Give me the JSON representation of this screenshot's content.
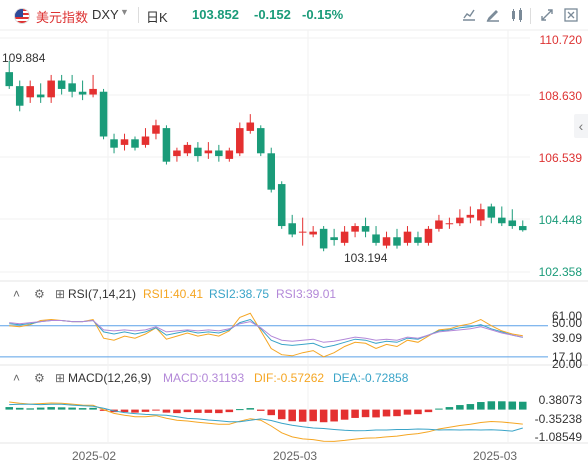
{
  "header": {
    "name": "美元指数",
    "code": "DXY",
    "period": "日K",
    "price": "103.852",
    "change": "-0.152",
    "change_pct": "-0.15%",
    "up_color": "#e43030",
    "down_color": "#1a9b79"
  },
  "toolbar": {
    "icons": [
      "chart-type-icon",
      "draw-icon",
      "indicator-icon",
      "fullscreen-icon",
      "settings-icon"
    ]
  },
  "main": {
    "max_label": "109.884",
    "min_label": "103.194",
    "y_ticks": [
      "110.720",
      "108.630",
      "106.539",
      "104.448",
      "102.358"
    ],
    "y_values": [
      110.72,
      108.63,
      106.539,
      104.448,
      102.358
    ]
  },
  "rsi": {
    "title": "RSI(7,14,21)",
    "rsi1": "RSI1:40.41",
    "rsi2": "RSI2:38.75",
    "rsi3": "RSI3:39.01",
    "y_ticks": [
      "61.00",
      "50.00",
      "39.09",
      "20.00",
      "17.10"
    ]
  },
  "macd": {
    "title": "MACD(12,26,9)",
    "macd": "MACD:0.31193",
    "dif": "DIF:-0.57262",
    "dea": "DEA:-0.72858",
    "y_ticks": [
      "0.38073",
      "-0.35238",
      "-1.08549"
    ]
  },
  "x_labels": [
    "2025-02",
    "2025-03",
    "2025-03"
  ],
  "chart_data": {
    "type": "candlestick",
    "candles": [
      [
        109.5,
        109.0,
        109.9,
        108.9
      ],
      [
        109.0,
        108.3,
        109.2,
        108.1
      ],
      [
        108.6,
        109.0,
        109.2,
        108.4
      ],
      [
        108.7,
        108.6,
        109.1,
        108.4
      ],
      [
        108.6,
        109.2,
        109.4,
        108.4
      ],
      [
        109.2,
        108.9,
        109.4,
        108.7
      ],
      [
        109.1,
        108.8,
        109.4,
        108.6
      ],
      [
        108.8,
        108.7,
        109.2,
        108.5
      ],
      [
        108.7,
        108.9,
        109.4,
        108.6
      ],
      [
        108.8,
        107.2,
        108.9,
        107.1
      ],
      [
        107.1,
        106.8,
        107.3,
        106.6
      ],
      [
        106.9,
        107.1,
        107.3,
        106.7
      ],
      [
        107.1,
        106.8,
        107.2,
        106.7
      ],
      [
        106.9,
        107.2,
        107.5,
        106.8
      ],
      [
        107.3,
        107.6,
        107.8,
        107.1
      ],
      [
        107.5,
        106.3,
        107.6,
        106.2
      ],
      [
        106.5,
        106.7,
        106.8,
        106.3
      ],
      [
        106.6,
        106.9,
        107.0,
        106.5
      ],
      [
        106.8,
        106.5,
        107.0,
        106.3
      ],
      [
        106.6,
        106.7,
        107.0,
        106.4
      ],
      [
        106.7,
        106.5,
        106.9,
        106.3
      ],
      [
        106.4,
        106.7,
        106.8,
        106.3
      ],
      [
        106.6,
        107.5,
        107.7,
        106.5
      ],
      [
        107.4,
        107.7,
        108.0,
        107.3
      ],
      [
        107.5,
        106.6,
        107.6,
        106.5
      ],
      [
        106.6,
        105.3,
        106.8,
        105.2
      ],
      [
        105.5,
        104.0,
        105.6,
        103.9
      ],
      [
        104.1,
        103.7,
        104.4,
        103.6
      ],
      [
        103.8,
        103.8,
        104.3,
        103.3
      ],
      [
        103.7,
        103.8,
        104.0,
        103.6
      ],
      [
        103.9,
        103.2,
        104.0,
        103.1
      ],
      [
        103.6,
        103.5,
        103.9,
        103.3
      ],
      [
        103.4,
        103.8,
        104.0,
        103.3
      ],
      [
        103.8,
        104.0,
        104.1,
        103.6
      ],
      [
        104.0,
        103.8,
        104.3,
        103.6
      ],
      [
        103.7,
        103.4,
        104.0,
        103.3
      ],
      [
        103.3,
        103.6,
        103.8,
        103.2
      ],
      [
        103.6,
        103.3,
        103.9,
        103.194
      ],
      [
        103.4,
        103.8,
        104.0,
        103.3
      ],
      [
        103.6,
        103.4,
        103.8,
        103.3
      ],
      [
        103.4,
        103.9,
        104.0,
        103.3
      ],
      [
        103.9,
        104.2,
        104.4,
        103.8
      ],
      [
        104.1,
        104.1,
        104.3,
        103.9
      ],
      [
        104.1,
        104.3,
        104.6,
        104.0
      ],
      [
        104.3,
        104.4,
        104.7,
        104.1
      ],
      [
        104.2,
        104.6,
        104.8,
        104.0
      ],
      [
        104.7,
        104.3,
        104.8,
        104.1
      ],
      [
        104.3,
        104.1,
        104.7,
        104.0
      ],
      [
        104.2,
        104.0,
        104.6,
        103.9
      ],
      [
        104.0,
        103.852,
        104.2,
        103.8
      ]
    ],
    "rsi1": [
      50,
      49,
      51,
      55,
      56,
      55,
      54,
      54,
      56,
      38,
      36,
      40,
      38,
      42,
      48,
      37,
      40,
      43,
      40,
      42,
      40,
      45,
      58,
      62,
      45,
      28,
      22,
      21,
      24,
      26,
      20,
      24,
      30,
      34,
      33,
      28,
      32,
      30,
      36,
      34,
      40,
      46,
      47,
      50,
      52,
      56,
      50,
      45,
      42,
      40.41
    ],
    "rsi2": [
      52,
      51,
      52,
      54,
      55,
      55,
      54,
      54,
      55,
      44,
      42,
      44,
      42,
      44,
      48,
      41,
      43,
      45,
      43,
      44,
      43,
      46,
      53,
      56,
      47,
      36,
      32,
      31,
      32,
      33,
      29,
      31,
      34,
      37,
      36,
      33,
      35,
      34,
      38,
      37,
      41,
      45,
      46,
      48,
      49,
      51,
      47,
      44,
      41,
      38.75
    ],
    "rsi3": [
      53,
      52,
      53,
      54,
      55,
      55,
      54,
      54,
      55,
      46,
      45,
      46,
      45,
      46,
      49,
      44,
      45,
      46,
      45,
      46,
      45,
      47,
      52,
      54,
      48,
      40,
      36,
      35,
      36,
      37,
      34,
      35,
      37,
      39,
      38,
      36,
      37,
      36,
      39,
      38,
      41,
      44,
      45,
      46,
      47,
      49,
      46,
      43,
      41,
      39.01
    ],
    "macd_hist": [
      0.1,
      0.07,
      0.05,
      0.08,
      0.1,
      0.09,
      0.08,
      0.06,
      0.07,
      -0.05,
      -0.1,
      -0.1,
      -0.12,
      -0.09,
      -0.03,
      -0.12,
      -0.14,
      -0.1,
      -0.13,
      -0.13,
      -0.14,
      -0.1,
      0.02,
      0.06,
      -0.05,
      -0.22,
      -0.38,
      -0.46,
      -0.48,
      -0.46,
      -0.5,
      -0.47,
      -0.4,
      -0.33,
      -0.3,
      -0.31,
      -0.27,
      -0.26,
      -0.2,
      -0.18,
      -0.1,
      0.04,
      0.1,
      0.18,
      0.22,
      0.3,
      0.33,
      0.33,
      0.32,
      0.31193
    ],
    "dif": [
      0.3,
      0.25,
      0.22,
      0.24,
      0.26,
      0.25,
      0.22,
      0.18,
      0.17,
      0.0,
      -0.15,
      -0.22,
      -0.28,
      -0.28,
      -0.24,
      -0.34,
      -0.42,
      -0.45,
      -0.5,
      -0.54,
      -0.58,
      -0.58,
      -0.46,
      -0.36,
      -0.42,
      -0.65,
      -0.92,
      -1.08,
      -1.16,
      -1.19,
      -1.25,
      -1.26,
      -1.22,
      -1.17,
      -1.13,
      -1.12,
      -1.08,
      -1.05,
      -0.99,
      -0.95,
      -0.88,
      -0.77,
      -0.7,
      -0.63,
      -0.58,
      -0.51,
      -0.47,
      -0.49,
      -0.53,
      -0.57262
    ],
    "dea": [
      0.2,
      0.21,
      0.21,
      0.2,
      0.21,
      0.21,
      0.18,
      0.15,
      0.13,
      0.05,
      -0.05,
      -0.12,
      -0.16,
      -0.19,
      -0.21,
      -0.22,
      -0.28,
      -0.35,
      -0.37,
      -0.41,
      -0.44,
      -0.48,
      -0.48,
      -0.42,
      -0.37,
      -0.43,
      -0.54,
      -0.62,
      -0.68,
      -0.73,
      -0.75,
      -0.79,
      -0.82,
      -0.84,
      -0.83,
      -0.81,
      -0.81,
      -0.79,
      -0.79,
      -0.77,
      -0.78,
      -0.81,
      -0.8,
      -0.81,
      -0.8,
      -0.81,
      -0.8,
      -0.82,
      -0.85,
      -0.72858
    ]
  }
}
